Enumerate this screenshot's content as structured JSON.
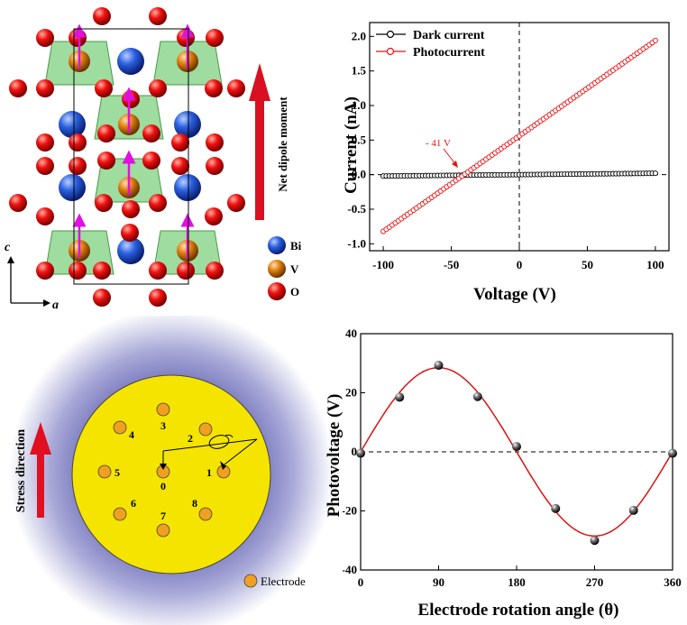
{
  "panel_a": {
    "axis_c": "c",
    "axis_a": "a",
    "arrow_label": "Net dipole moment",
    "legend": [
      {
        "label": "Bi",
        "color": "#1f55d6"
      },
      {
        "label": "V",
        "color": "#e07a10"
      },
      {
        "label": "O",
        "color": "#e01010"
      }
    ]
  },
  "panel_c": {
    "stress_label": "Stress direction",
    "electrode_legend": "Electrode",
    "electrodes": [
      "0",
      "1",
      "2",
      "3",
      "4",
      "5",
      "6",
      "7",
      "8"
    ],
    "disk_color": "#f5e400",
    "electrode_color": "#f0a020"
  },
  "chart_data": [
    {
      "type": "line",
      "xlabel": "Voltage (V)",
      "ylabel": "Current (nA)",
      "xlim": [
        -110,
        110
      ],
      "ylim": [
        -1.1,
        2.2
      ],
      "xticks": [
        -100,
        -50,
        0,
        50,
        100
      ],
      "yticks": [
        -1.0,
        -0.5,
        0.0,
        0.5,
        1.0,
        1.5,
        2.0
      ],
      "ytick_labels": [
        "-1.0",
        "-0.5",
        "0.0",
        "0.5",
        "1.0",
        "1.5",
        "2.0"
      ],
      "legend_position": "top-left",
      "annotation": "- 41 V",
      "series": [
        {
          "name": "Dark current",
          "color": "#000000",
          "x": [
            -100,
            100
          ],
          "y": [
            -0.02,
            0.02
          ]
        },
        {
          "name": "Photocurrent",
          "color": "#ee1111",
          "x": [
            -100,
            100
          ],
          "y": [
            -0.82,
            1.94
          ]
        }
      ]
    },
    {
      "type": "scatter",
      "xlabel": "Electrode rotation angle (θ)",
      "ylabel": "Photovoltage (V)",
      "xlim": [
        0,
        360
      ],
      "ylim": [
        -40,
        40
      ],
      "xticks": [
        0,
        90,
        180,
        270,
        360
      ],
      "yticks": [
        -40,
        -20,
        0,
        20,
        40
      ],
      "points": [
        {
          "x": 0,
          "y": -0.5
        },
        {
          "x": 45,
          "y": 18.5
        },
        {
          "x": 90,
          "y": 29.3
        },
        {
          "x": 135,
          "y": 18.7
        },
        {
          "x": 180,
          "y": 1.8
        },
        {
          "x": 225,
          "y": -19.2
        },
        {
          "x": 270,
          "y": -30.0
        },
        {
          "x": 315,
          "y": -19.8
        },
        {
          "x": 360,
          "y": -0.5
        }
      ],
      "fit": {
        "amplitude": 28.5,
        "color": "#dd1111"
      }
    }
  ]
}
